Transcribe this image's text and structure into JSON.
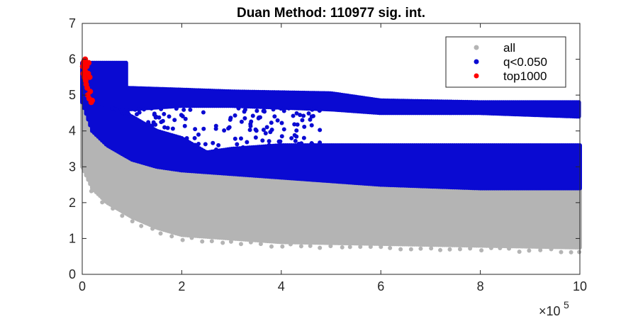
{
  "chart_data": {
    "type": "scatter",
    "title": "Duan Method: 110977 sig. int.",
    "xlabel": "",
    "ylabel": "",
    "xlim": [
      0,
      1000000
    ],
    "ylim": [
      0,
      7
    ],
    "x_ticks": [
      0,
      200000,
      400000,
      600000,
      800000,
      1000000
    ],
    "x_tick_labels": [
      "0",
      "2",
      "4",
      "6",
      "8",
      "10"
    ],
    "x_exponent_base": "×10",
    "x_exponent_power": "5",
    "y_ticks": [
      0,
      1,
      2,
      3,
      4,
      5,
      6,
      7
    ],
    "y_tick_labels": [
      "0",
      "1",
      "2",
      "3",
      "4",
      "5",
      "6",
      "7"
    ],
    "grid": false,
    "legend_position": "top-right",
    "series": [
      {
        "name": "all",
        "color": "#b4b4b4",
        "description_points": "dense cloud; lower envelope decays with x",
        "lower_envelope": [
          [
            0,
            3.0
          ],
          [
            20000,
            2.4
          ],
          [
            50000,
            2.0
          ],
          [
            100000,
            1.6
          ],
          [
            150000,
            1.3
          ],
          [
            200000,
            1.1
          ],
          [
            300000,
            1.0
          ],
          [
            400000,
            0.9
          ],
          [
            600000,
            0.85
          ],
          [
            800000,
            0.8
          ],
          [
            1000000,
            0.75
          ]
        ],
        "upper_envelope": [
          [
            0,
            4.8
          ],
          [
            20000,
            4.0
          ],
          [
            50000,
            3.6
          ],
          [
            100000,
            3.2
          ],
          [
            150000,
            3.0
          ],
          [
            200000,
            2.9
          ],
          [
            300000,
            2.8
          ],
          [
            400000,
            2.7
          ],
          [
            600000,
            2.5
          ],
          [
            800000,
            2.4
          ],
          [
            1000000,
            2.4
          ]
        ]
      },
      {
        "name": "q<0.050",
        "color": "#0a0ad2",
        "lower_envelope": [
          [
            0,
            4.8
          ],
          [
            20000,
            4.0
          ],
          [
            50000,
            3.6
          ],
          [
            100000,
            3.2
          ],
          [
            150000,
            3.0
          ],
          [
            200000,
            2.9
          ],
          [
            300000,
            2.8
          ],
          [
            400000,
            2.7
          ],
          [
            600000,
            2.5
          ],
          [
            800000,
            2.4
          ],
          [
            1000000,
            2.4
          ]
        ],
        "lower_band_top": [
          [
            0,
            5.0
          ],
          [
            50000,
            4.7
          ],
          [
            100000,
            4.4
          ],
          [
            150000,
            4.0
          ],
          [
            200000,
            3.8
          ],
          [
            250000,
            3.4
          ],
          [
            300000,
            3.5
          ],
          [
            400000,
            3.6
          ],
          [
            600000,
            3.6
          ],
          [
            800000,
            3.6
          ],
          [
            1000000,
            3.6
          ]
        ],
        "upper_band": [
          [
            90000,
            5.2,
            4.6
          ],
          [
            200000,
            5.15,
            4.7
          ],
          [
            300000,
            5.1,
            4.7
          ],
          [
            500000,
            5.05,
            4.6
          ],
          [
            600000,
            4.85,
            4.5
          ],
          [
            800000,
            4.8,
            4.5
          ],
          [
            1000000,
            4.8,
            4.4
          ]
        ],
        "early_block": [
          [
            0,
            5.9
          ],
          [
            90000,
            5.9
          ]
        ]
      },
      {
        "name": "top1000",
        "color": "#ff0000",
        "points": [
          [
            1000,
            5.8
          ],
          [
            2000,
            5.6
          ],
          [
            3000,
            5.9
          ],
          [
            4000,
            5.5
          ],
          [
            5000,
            5.7
          ],
          [
            6000,
            6.0
          ],
          [
            7000,
            5.4
          ],
          [
            8000,
            5.3
          ],
          [
            9000,
            5.8
          ],
          [
            10000,
            5.2
          ],
          [
            11000,
            5.0
          ],
          [
            12000,
            5.6
          ],
          [
            13000,
            5.9
          ],
          [
            14000,
            4.9
          ],
          [
            15000,
            5.5
          ],
          [
            16000,
            5.1
          ],
          [
            18000,
            4.8
          ],
          [
            20000,
            4.85
          ],
          [
            3500,
            5.95
          ],
          [
            6500,
            5.65
          ]
        ]
      }
    ]
  }
}
